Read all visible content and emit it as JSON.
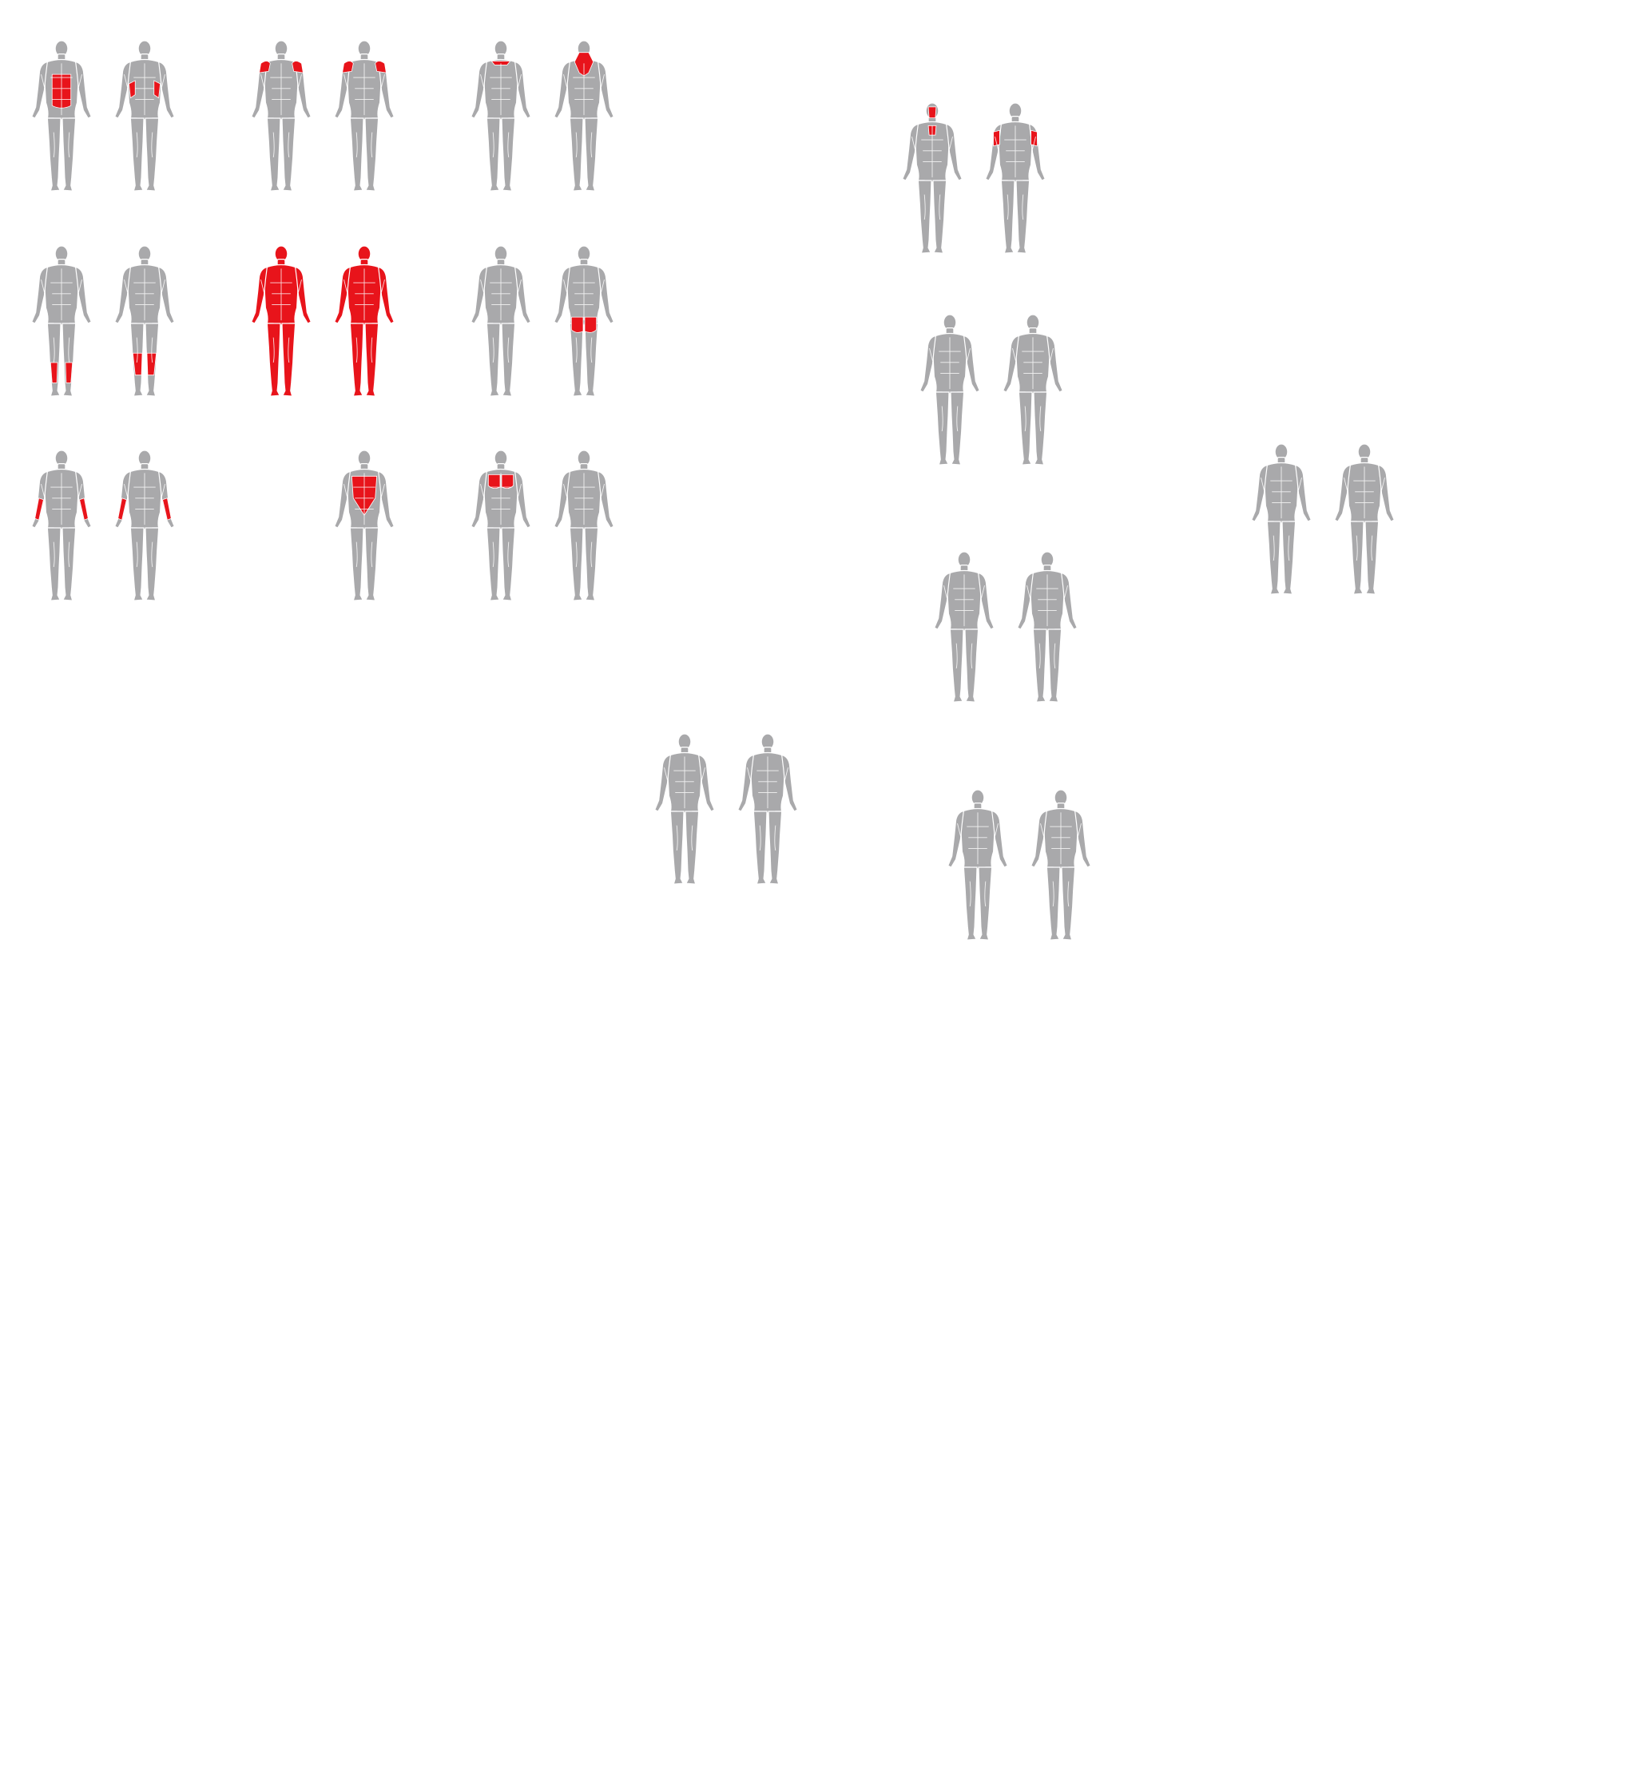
{
  "colors": {
    "body": "#a9a9ab",
    "outline": "#ffffff",
    "highlight": "#e8141b",
    "background": "#ffffff"
  },
  "figures": [
    {
      "name": "muscle-map-abdominals",
      "front": true,
      "back": true,
      "highlight": "abdominals"
    },
    {
      "name": "muscle-map-shoulders",
      "front": true,
      "back": true,
      "highlight": "shoulders"
    },
    {
      "name": "muscle-map-neck-traps",
      "front": true,
      "back": true,
      "highlight": "neck"
    },
    {
      "name": "muscle-map-calves",
      "front": true,
      "back": true,
      "highlight": "calves"
    },
    {
      "name": "muscle-map-full-body",
      "front": true,
      "back": true,
      "highlight": "full"
    },
    {
      "name": "muscle-map-glutes",
      "front": true,
      "back": true,
      "highlight": "glutes"
    },
    {
      "name": "muscle-map-forearms",
      "front": true,
      "back": true,
      "highlight": "forearms"
    },
    {
      "name": "muscle-map-lats",
      "front": false,
      "back": true,
      "highlight": "lats"
    },
    {
      "name": "muscle-map-chest",
      "front": true,
      "back": true,
      "highlight": "chest"
    },
    {
      "name": "muscle-map-neck-triceps",
      "front": true,
      "back": true,
      "highlight": "neck-triceps"
    },
    {
      "name": "muscle-map-none-1",
      "front": true,
      "back": true,
      "highlight": "none"
    },
    {
      "name": "muscle-map-none-2",
      "front": true,
      "back": true,
      "highlight": "none"
    },
    {
      "name": "muscle-map-none-3",
      "front": true,
      "back": true,
      "highlight": "none"
    },
    {
      "name": "muscle-map-none-4",
      "front": true,
      "back": true,
      "highlight": "none"
    },
    {
      "name": "muscle-map-none-5",
      "front": true,
      "back": true,
      "highlight": "none"
    }
  ]
}
